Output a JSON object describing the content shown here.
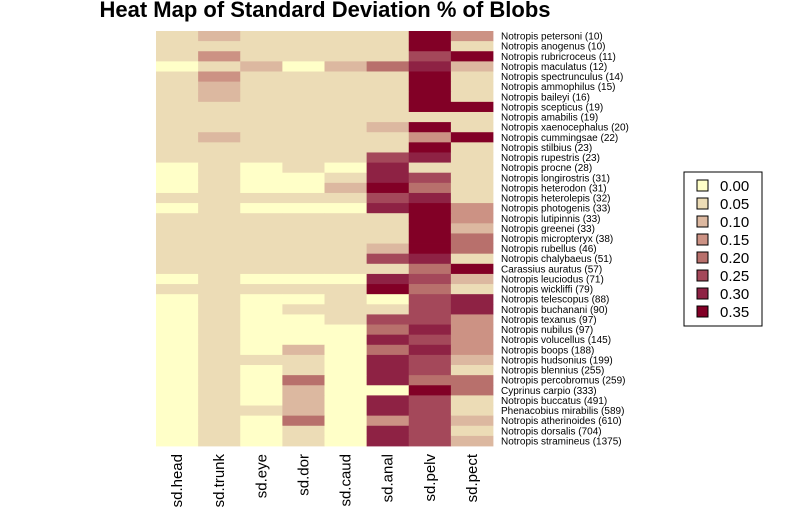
{
  "chart_data": {
    "type": "heatmap",
    "title": "Heat Map of Standard Deviation % of Blobs",
    "columns": [
      "sd.head",
      "sd.trunk",
      "sd.eye",
      "sd.dor",
      "sd.caud",
      "sd.anal",
      "sd.pelv",
      "sd.pect"
    ],
    "rows": [
      "Notropis petersoni (10)",
      "Notropis anogenus (10)",
      "Notropis rubricroceus (11)",
      "Notropis maculatus (12)",
      "Notropis spectrunculus (14)",
      "Notropis ammophilus (15)",
      "Notropis baileyi (16)",
      "Notropis scepticus (19)",
      "Notropis amabilis (19)",
      "Notropis xaenocephalus (20)",
      "Notropis cummingsae (22)",
      "Notropis stilbius (23)",
      "Notropis rupestris (23)",
      "Notropis procne (28)",
      "Notropis longirostris (31)",
      "Notropis heterodon (31)",
      "Notropis heterolepis (32)",
      "Notropis photogenis (33)",
      "Notropis lutipinnis (33)",
      "Notropis greenei (33)",
      "Notropis micropteryx (38)",
      "Notropis rubellus (46)",
      "Notropis chalybaeus (51)",
      "Carassius auratus (57)",
      "Notropis leuciodus (71)",
      "Notropis wickliffi (79)",
      "Notropis telescopus (88)",
      "Notropis buchanani (90)",
      "Notropis texanus (97)",
      "Notropis nubilus (97)",
      "Notropis volucellus (145)",
      "Notropis boops (188)",
      "Notropis hudsonius (199)",
      "Notropis blennius (255)",
      "Notropis percobromus (259)",
      "Cyprinus carpio (333)",
      "Notropis buccatus (491)",
      "Phenacobius mirabilis (589)",
      "Notropis atherinoides (610)",
      "Notropis dorsalis (704)",
      "Notropis stramineus (1375)"
    ],
    "values": [
      [
        0.05,
        0.1,
        0.05,
        0.05,
        0.05,
        0.05,
        0.35,
        0.15
      ],
      [
        0.05,
        0.05,
        0.05,
        0.05,
        0.05,
        0.05,
        0.35,
        0.05
      ],
      [
        0.05,
        0.15,
        0.05,
        0.05,
        0.05,
        0.05,
        0.25,
        0.35
      ],
      [
        0.0,
        0.05,
        0.1,
        0.0,
        0.1,
        0.2,
        0.3,
        0.1
      ],
      [
        0.05,
        0.15,
        0.05,
        0.05,
        0.05,
        0.05,
        0.35,
        0.05
      ],
      [
        0.05,
        0.1,
        0.05,
        0.05,
        0.05,
        0.05,
        0.35,
        0.05
      ],
      [
        0.05,
        0.1,
        0.05,
        0.05,
        0.05,
        0.05,
        0.35,
        0.05
      ],
      [
        0.05,
        0.05,
        0.05,
        0.05,
        0.05,
        0.05,
        0.35,
        0.35
      ],
      [
        0.05,
        0.05,
        0.05,
        0.05,
        0.05,
        0.05,
        0.05,
        0.05
      ],
      [
        0.05,
        0.05,
        0.05,
        0.05,
        0.05,
        0.1,
        0.35,
        0.05
      ],
      [
        0.05,
        0.1,
        0.05,
        0.05,
        0.05,
        0.05,
        0.15,
        0.35
      ],
      [
        0.05,
        0.05,
        0.05,
        0.05,
        0.05,
        0.05,
        0.35,
        0.05
      ],
      [
        0.05,
        0.05,
        0.05,
        0.05,
        0.05,
        0.25,
        0.3,
        0.05
      ],
      [
        0.0,
        0.05,
        0.0,
        0.05,
        0.0,
        0.3,
        0.05,
        0.05
      ],
      [
        0.0,
        0.05,
        0.0,
        0.0,
        0.05,
        0.3,
        0.25,
        0.05
      ],
      [
        0.0,
        0.05,
        0.0,
        0.0,
        0.1,
        0.35,
        0.2,
        0.05
      ],
      [
        0.05,
        0.05,
        0.05,
        0.05,
        0.05,
        0.25,
        0.3,
        0.05
      ],
      [
        0.0,
        0.05,
        0.0,
        0.0,
        0.0,
        0.3,
        0.35,
        0.15
      ],
      [
        0.05,
        0.05,
        0.05,
        0.05,
        0.05,
        0.05,
        0.35,
        0.15
      ],
      [
        0.05,
        0.05,
        0.05,
        0.05,
        0.05,
        0.05,
        0.35,
        0.1
      ],
      [
        0.05,
        0.05,
        0.05,
        0.05,
        0.05,
        0.05,
        0.35,
        0.2
      ],
      [
        0.05,
        0.05,
        0.05,
        0.05,
        0.05,
        0.1,
        0.35,
        0.2
      ],
      [
        0.05,
        0.05,
        0.05,
        0.05,
        0.05,
        0.25,
        0.3,
        0.05
      ],
      [
        0.05,
        0.05,
        0.05,
        0.05,
        0.05,
        0.05,
        0.2,
        0.35
      ],
      [
        0.0,
        0.05,
        0.0,
        0.0,
        0.0,
        0.3,
        0.25,
        0.1
      ],
      [
        0.05,
        0.05,
        0.05,
        0.05,
        0.05,
        0.35,
        0.2,
        0.05
      ],
      [
        0.0,
        0.05,
        0.0,
        0.0,
        0.05,
        0.0,
        0.25,
        0.3
      ],
      [
        0.0,
        0.05,
        0.0,
        0.05,
        0.05,
        0.05,
        0.25,
        0.3
      ],
      [
        0.0,
        0.05,
        0.0,
        0.0,
        0.05,
        0.25,
        0.25,
        0.15
      ],
      [
        0.0,
        0.05,
        0.0,
        0.0,
        0.0,
        0.2,
        0.3,
        0.15
      ],
      [
        0.0,
        0.05,
        0.0,
        0.0,
        0.0,
        0.3,
        0.25,
        0.15
      ],
      [
        0.0,
        0.05,
        0.0,
        0.1,
        0.0,
        0.2,
        0.3,
        0.15
      ],
      [
        0.0,
        0.05,
        0.05,
        0.05,
        0.0,
        0.3,
        0.25,
        0.1
      ],
      [
        0.0,
        0.05,
        0.0,
        0.05,
        0.0,
        0.3,
        0.25,
        0.05
      ],
      [
        0.0,
        0.05,
        0.0,
        0.2,
        0.0,
        0.3,
        0.2,
        0.2
      ],
      [
        0.0,
        0.05,
        0.0,
        0.1,
        0.0,
        0.0,
        0.35,
        0.2
      ],
      [
        0.0,
        0.05,
        0.0,
        0.1,
        0.0,
        0.3,
        0.25,
        0.05
      ],
      [
        0.0,
        0.05,
        0.05,
        0.1,
        0.0,
        0.3,
        0.25,
        0.05
      ],
      [
        0.0,
        0.05,
        0.0,
        0.2,
        0.0,
        0.15,
        0.25,
        0.1
      ],
      [
        0.0,
        0.05,
        0.0,
        0.05,
        0.0,
        0.3,
        0.25,
        0.05
      ],
      [
        0.0,
        0.05,
        0.0,
        0.05,
        0.0,
        0.3,
        0.25,
        0.1
      ]
    ],
    "legend": {
      "placement": "right",
      "levels": [
        {
          "label": "0.00",
          "value": 0.0
        },
        {
          "label": "0.05",
          "value": 0.05
        },
        {
          "label": "0.10",
          "value": 0.1
        },
        {
          "label": "0.15",
          "value": 0.15
        },
        {
          "label": "0.20",
          "value": 0.2
        },
        {
          "label": "0.25",
          "value": 0.25
        },
        {
          "label": "0.30",
          "value": 0.3
        },
        {
          "label": "0.35",
          "value": 0.35
        }
      ]
    },
    "palette": [
      "#ffffc8",
      "#ecdcb6",
      "#dcb8a0",
      "#cc9284",
      "#b8706c",
      "#a4485a",
      "#8e2244",
      "#820026"
    ],
    "grid": false
  }
}
